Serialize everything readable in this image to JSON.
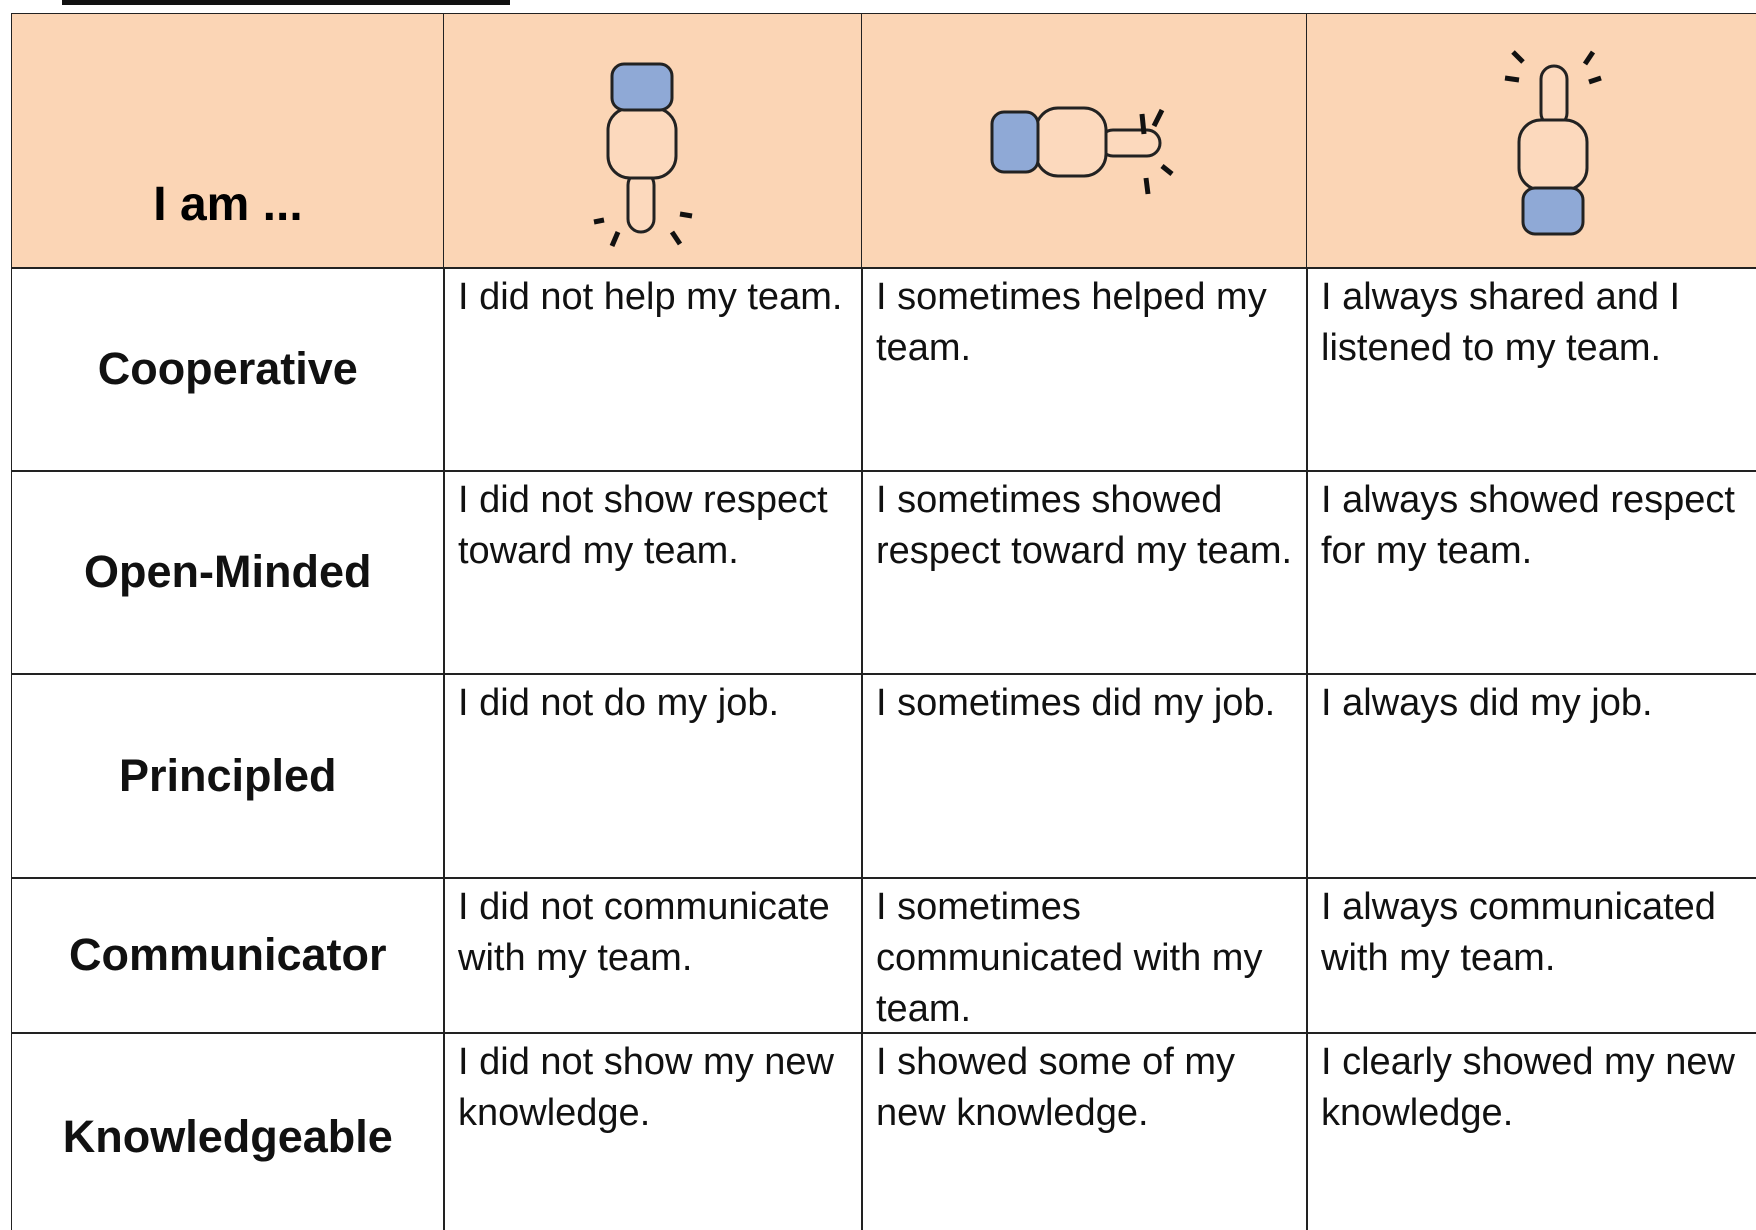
{
  "header": {
    "title": "I am ..."
  },
  "table": {
    "rows": [
      {
        "label": "Cooperative",
        "cells": [
          "I did not help my team.",
          "I sometimes helped my team.",
          "I always shared and I listened to my team."
        ]
      },
      {
        "label": "Open-Minded",
        "cells": [
          "I did not show respect toward my team.",
          "I sometimes showed respect toward my team.",
          "I always showed respect for my team."
        ]
      },
      {
        "label": "Principled",
        "cells": [
          "I did not do my job.",
          "I sometimes did my job.",
          "I always did my job."
        ]
      },
      {
        "label": "Communicator",
        "cells": [
          "I did not communicate with my team.",
          "I sometimes communicated with my team.",
          "I always communicated with my team."
        ]
      },
      {
        "label": "Knowledgeable",
        "cells": [
          "I did not show my new knowledge.",
          "I showed some of my new knowledge.",
          "I clearly showed my new knowledge."
        ]
      }
    ]
  }
}
